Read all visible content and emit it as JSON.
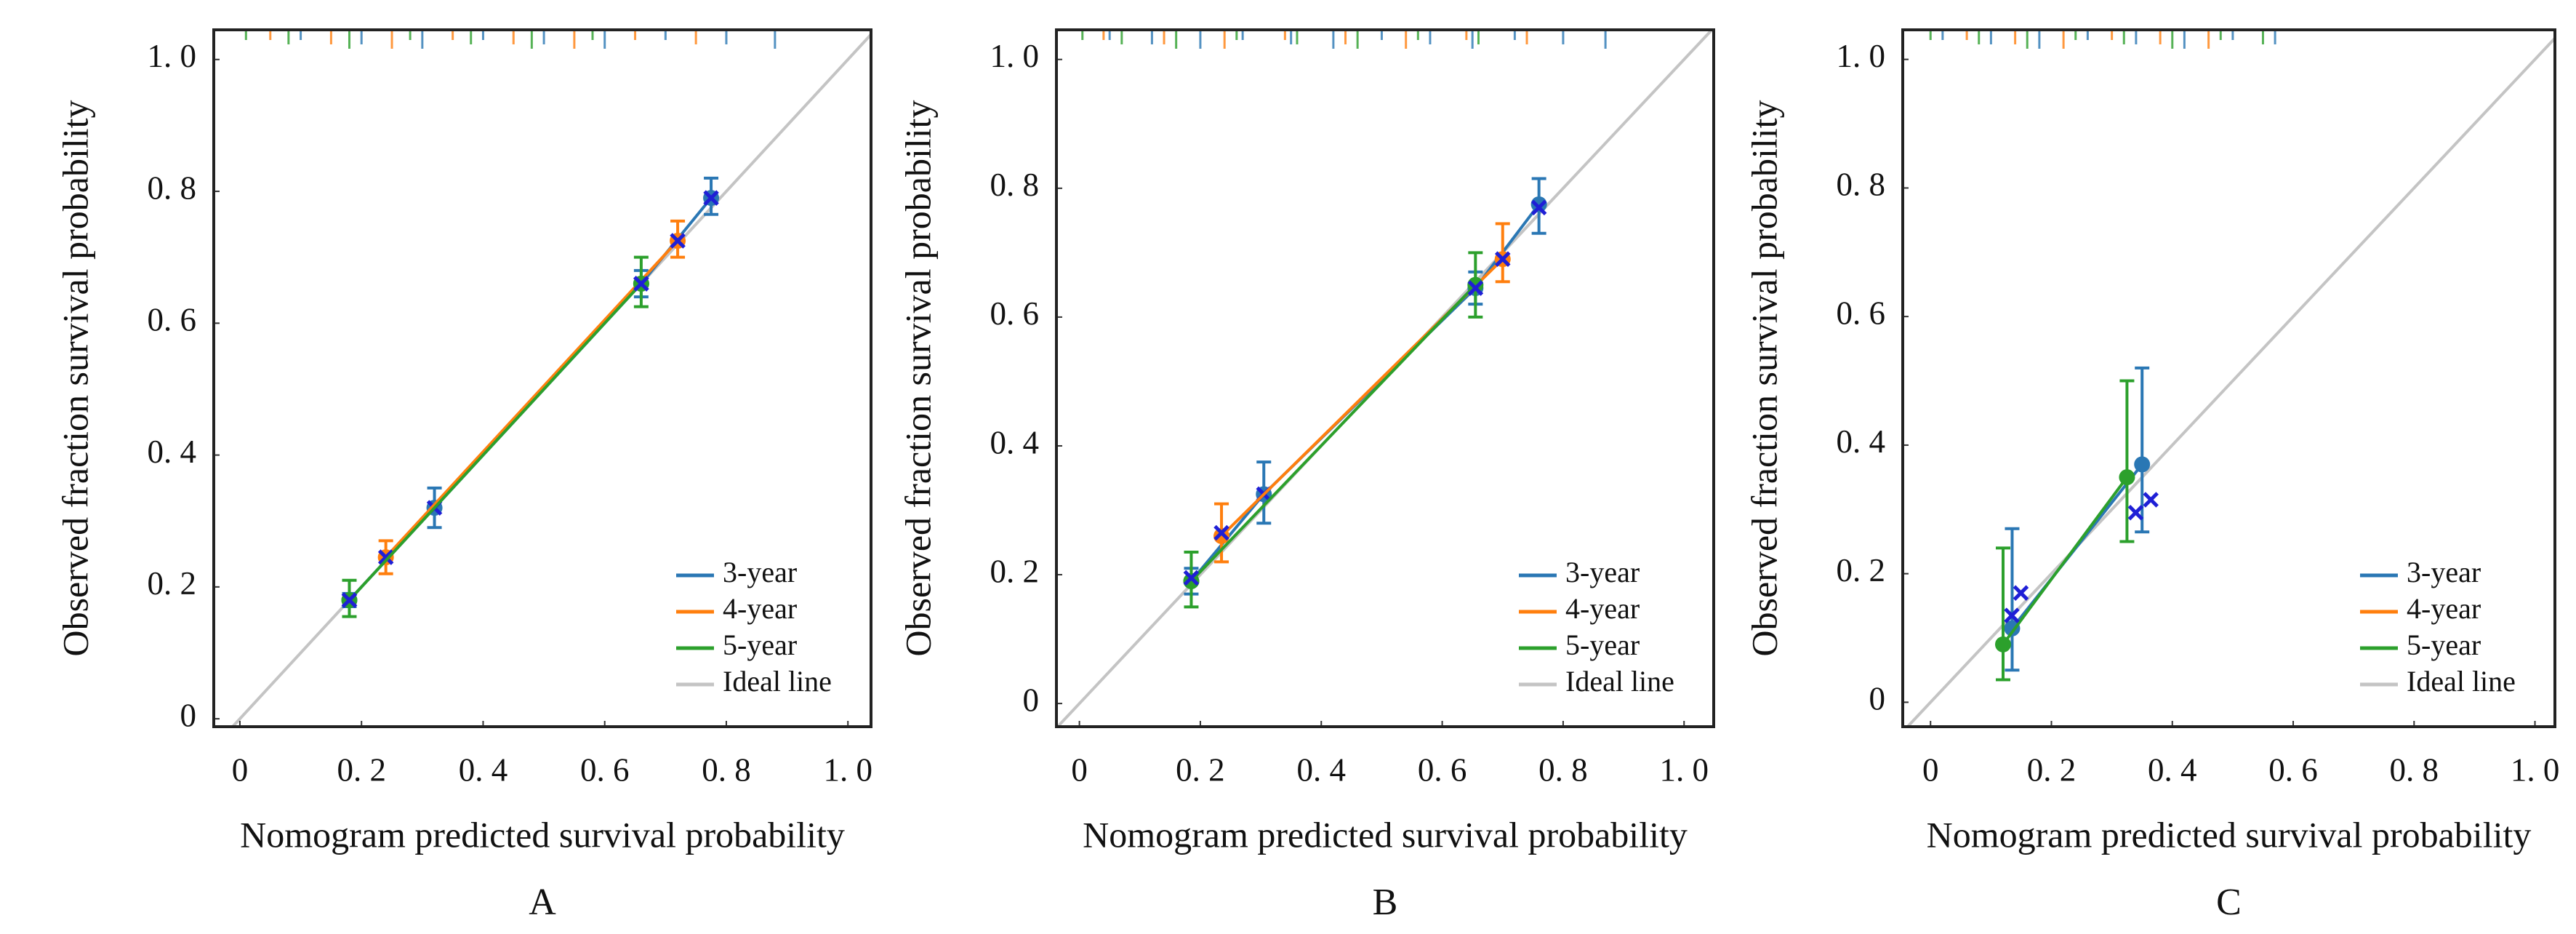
{
  "chart_data": [
    {
      "type": "calibration",
      "label": "A",
      "x_label": "Nomogram predicted survival probability",
      "y_label": "Observed fraction survival probability",
      "xlim": [
        -0.043,
        1.038
      ],
      "ylim": [
        -0.012,
        1.045
      ],
      "xticks": [
        0,
        {
          "value": 0.2,
          "label": "0. 2"
        },
        {
          "value": 0.4,
          "label": "0. 4"
        },
        {
          "value": 0.6,
          "label": "0. 6"
        },
        {
          "value": 0.8,
          "label": "0. 8"
        },
        {
          "value": 1.0,
          "label": "1. 0"
        }
      ],
      "yticks": [
        0,
        {
          "value": 0.2,
          "label": "0. 2"
        },
        {
          "value": 0.4,
          "label": "0. 4"
        },
        {
          "value": 0.6,
          "label": "0. 6"
        },
        {
          "value": 0.8,
          "label": "0. 8"
        },
        {
          "value": 1.0,
          "label": "1. 0"
        }
      ],
      "legend": "lower right",
      "cross_color": "#1f1fd6",
      "ideal_line": {
        "name": "Ideal line",
        "color": "#c4c4c4"
      },
      "series": [
        {
          "name": "3-year",
          "color": "#2a77b4",
          "x": [
            0.18,
            0.32,
            0.66,
            0.775
          ],
          "values": [
            0.18,
            0.32,
            0.66,
            0.79
          ],
          "lower": [
            0.17,
            0.29,
            0.64,
            0.765
          ],
          "upper": [
            0.19,
            0.35,
            0.68,
            0.82
          ],
          "cross_values": [
            0.18,
            0.32,
            0.66,
            0.79
          ],
          "rug": [
            0.1,
            0.2,
            0.3,
            0.4,
            0.5,
            0.6,
            0.7,
            0.8,
            0.88
          ]
        },
        {
          "name": "4-year",
          "color": "#ff7f0e",
          "x": [
            0.24,
            0.72
          ],
          "values": [
            0.245,
            0.725
          ],
          "lower": [
            0.22,
            0.7
          ],
          "upper": [
            0.27,
            0.755
          ],
          "cross_values": [
            0.245,
            0.725
          ],
          "rug": [
            0.05,
            0.15,
            0.25,
            0.35,
            0.45,
            0.55,
            0.65,
            0.75
          ]
        },
        {
          "name": "5-year",
          "color": "#2ca02c",
          "x": [
            0.18,
            0.66
          ],
          "values": [
            0.18,
            0.66
          ],
          "lower": [
            0.155,
            0.625
          ],
          "upper": [
            0.21,
            0.7
          ],
          "cross_values": [
            0.18,
            0.66
          ],
          "rug": [
            0.01,
            0.08,
            0.18,
            0.28,
            0.38,
            0.48,
            0.58
          ]
        }
      ]
    },
    {
      "type": "calibration",
      "label": "B",
      "x_label": "Nomogram predicted survival probability",
      "y_label": "Observed fraction survival probability",
      "xlim": [
        -0.038,
        1.049
      ],
      "ylim": [
        -0.036,
        1.046
      ],
      "xticks": [
        0,
        {
          "value": 0.2,
          "label": "0. 2"
        },
        {
          "value": 0.4,
          "label": "0. 4"
        },
        {
          "value": 0.6,
          "label": "0. 6"
        },
        {
          "value": 0.8,
          "label": "0. 8"
        },
        {
          "value": 1.0,
          "label": "1. 0"
        }
      ],
      "yticks": [
        0,
        {
          "value": 0.2,
          "label": "0. 2"
        },
        {
          "value": 0.4,
          "label": "0. 4"
        },
        {
          "value": 0.6,
          "label": "0. 6"
        },
        {
          "value": 0.8,
          "label": "0. 8"
        },
        {
          "value": 1.0,
          "label": "1. 0"
        }
      ],
      "legend": "lower right",
      "cross_color": "#1f1fd6",
      "ideal_line": {
        "name": "Ideal line",
        "color": "#c4c4c4"
      },
      "series": [
        {
          "name": "3-year",
          "color": "#2a77b4",
          "x": [
            0.185,
            0.305,
            0.655,
            0.76
          ],
          "values": [
            0.19,
            0.325,
            0.645,
            0.775
          ],
          "lower": [
            0.17,
            0.28,
            0.62,
            0.73
          ],
          "upper": [
            0.21,
            0.375,
            0.67,
            0.815
          ],
          "cross_values": [
            0.195,
            0.325,
            0.645,
            0.77
          ],
          "rug": [
            0.05,
            0.12,
            0.2,
            0.27,
            0.35,
            0.42,
            0.5,
            0.58,
            0.65,
            0.72,
            0.8,
            0.87
          ]
        },
        {
          "name": "4-year",
          "color": "#ff7f0e",
          "x": [
            0.235,
            0.7
          ],
          "values": [
            0.26,
            0.69
          ],
          "lower": [
            0.22,
            0.655
          ],
          "upper": [
            0.31,
            0.745
          ],
          "cross_values": [
            0.265,
            0.69
          ],
          "rug": [
            0.04,
            0.14,
            0.24,
            0.34,
            0.44,
            0.54,
            0.64,
            0.74
          ]
        },
        {
          "name": "5-year",
          "color": "#2ca02c",
          "x": [
            0.185,
            0.655
          ],
          "values": [
            0.19,
            0.65
          ],
          "lower": [
            0.15,
            0.6
          ],
          "upper": [
            0.235,
            0.7
          ],
          "cross_values": [
            0.195,
            0.645
          ],
          "rug": [
            0.005,
            0.07,
            0.16,
            0.26,
            0.36,
            0.46,
            0.56,
            0.66
          ]
        }
      ]
    },
    {
      "type": "calibration",
      "label": "C",
      "x_label": "Nomogram predicted survival probability",
      "y_label": "Observed fraction survival probability",
      "xlim": [
        -0.046,
        1.033
      ],
      "ylim": [
        -0.038,
        1.046
      ],
      "xticks": [
        0,
        {
          "value": 0.2,
          "label": "0. 2"
        },
        {
          "value": 0.4,
          "label": "0. 4"
        },
        {
          "value": 0.6,
          "label": "0. 6"
        },
        {
          "value": 0.8,
          "label": "0. 8"
        },
        {
          "value": 1.0,
          "label": "1. 0"
        }
      ],
      "yticks": [
        0,
        {
          "value": 0.2,
          "label": "0. 2"
        },
        {
          "value": 0.4,
          "label": "0. 4"
        },
        {
          "value": 0.6,
          "label": "0. 6"
        },
        {
          "value": 0.8,
          "label": "0. 8"
        },
        {
          "value": 1.0,
          "label": "1. 0"
        }
      ],
      "legend": "lower right",
      "cross_color": "#1f1fd6",
      "ideal_line": {
        "name": "Ideal line",
        "color": "#c4c4c4"
      },
      "series": [
        {
          "name": "3-year",
          "color": "#2a77b4",
          "x": [
            0.135,
            0.35
          ],
          "values": [
            0.115,
            0.37
          ],
          "lower": [
            0.05,
            0.265
          ],
          "upper": [
            0.27,
            0.52
          ],
          "cross_values": [
            0.17,
            0.315
          ],
          "rug": [
            0.02,
            0.1,
            0.18,
            0.26,
            0.34,
            0.42,
            0.5,
            0.57
          ]
        },
        {
          "name": "4-year",
          "color": "#ff7f0e",
          "x": [],
          "values": [],
          "lower": [],
          "upper": [],
          "cross_values": [],
          "rug": [
            0.06,
            0.14,
            0.22,
            0.3,
            0.38,
            0.46
          ]
        },
        {
          "name": "5-year",
          "color": "#2ca02c",
          "x": [
            0.12,
            0.325
          ],
          "values": [
            0.09,
            0.35
          ],
          "lower": [
            0.035,
            0.25
          ],
          "upper": [
            0.24,
            0.5
          ],
          "cross_values": [
            0.135,
            0.295
          ],
          "rug": [
            0.0,
            0.08,
            0.16,
            0.24,
            0.32,
            0.4,
            0.48,
            0.55
          ]
        }
      ]
    }
  ]
}
